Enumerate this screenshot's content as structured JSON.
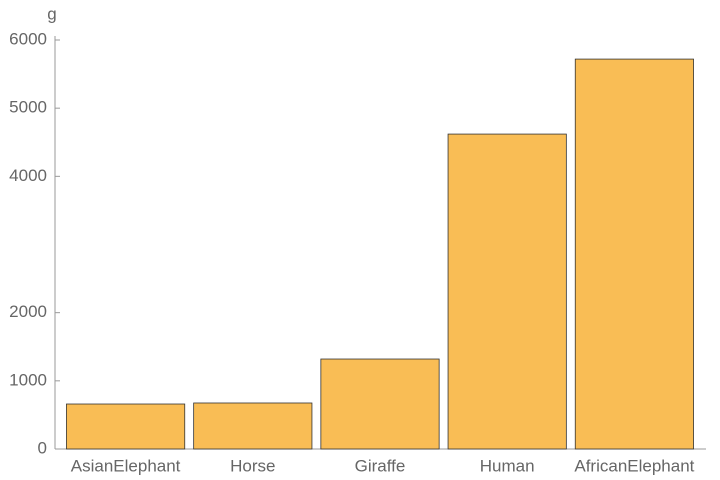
{
  "chart_data": {
    "type": "bar",
    "y_label": "g",
    "categories": [
      "AsianElephant",
      "Horse",
      "Giraffe",
      "Human",
      "AfricanElephant"
    ],
    "values": [
      660,
      675,
      1320,
      4620,
      5720
    ],
    "color": "#f9bd55",
    "ylim": [
      0,
      6000
    ],
    "yticks": [
      0,
      1000,
      2000,
      4000,
      5000,
      6000
    ]
  }
}
